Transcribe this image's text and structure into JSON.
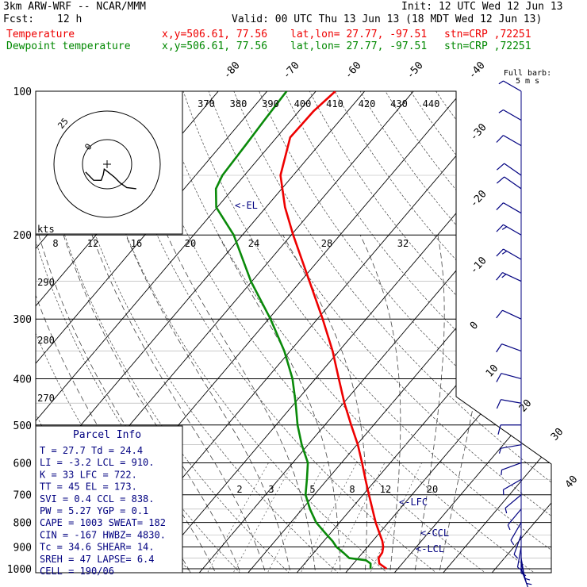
{
  "header": {
    "model": "3km ARW-WRF -- NCAR/MMM",
    "init": "Init: 12 UTC Wed 12 Jun 13",
    "fcst_label": "Fcst:",
    "fcst_value": "12 h",
    "valid": "Valid: 00 UTC Thu 13 Jun 13 (18 MDT Wed 12 Jun 13)",
    "lines": [
      {
        "name": "Temperature",
        "xy": "x,y=506.61, 77.56",
        "latlon": "lat,lon= 27.77, -97.51",
        "stn": "stn=CRP ,72251",
        "color": "#ee0000"
      },
      {
        "name": "Dewpoint temperature",
        "xy": "x,y=506.61, 77.56",
        "latlon": "lat,lon= 27.77, -97.51",
        "stn": "stn=CRP ,72251",
        "color": "#008800"
      }
    ]
  },
  "colors": {
    "temperature": "#ee0000",
    "dewpoint": "#0a8a0a",
    "grid": "#000000",
    "text_blue": "#000080",
    "wind_barb": "#000080"
  },
  "pressure_labels": [
    "100",
    "200",
    "300",
    "400",
    "500",
    "600",
    "700",
    "800",
    "900",
    "1000"
  ],
  "isotherm_labels": [
    {
      "t": -80,
      "label": "-80"
    },
    {
      "t": -70,
      "label": "-70"
    },
    {
      "t": -60,
      "label": "-60"
    },
    {
      "t": -50,
      "label": "-50"
    },
    {
      "t": -40,
      "label": "-40"
    },
    {
      "t": -30,
      "label": "-30"
    },
    {
      "t": -20,
      "label": "-20"
    },
    {
      "t": -10,
      "label": "-10"
    },
    {
      "t": 0,
      "label": "0"
    },
    {
      "t": 10,
      "label": "10"
    },
    {
      "t": 20,
      "label": "20"
    },
    {
      "t": 30,
      "label": "30"
    },
    {
      "t": 40,
      "label": "40"
    }
  ],
  "theta_labels_top": [
    "370",
    "380",
    "390",
    "400",
    "410",
    "420",
    "430",
    "440"
  ],
  "theta_labels_left": [
    "290",
    "280",
    "270"
  ],
  "hodograph": {
    "kts_label": "kts",
    "speed_labels": [
      "8",
      "12",
      "16",
      "20",
      "24",
      "28",
      "32"
    ],
    "ring_labels": [
      "25",
      "0"
    ]
  },
  "mixing_ratio_labels": [
    "2",
    "3",
    "5",
    "8",
    "12",
    "20"
  ],
  "level_labels": {
    "el": "<-EL",
    "lfc": "<-LFC",
    "ccl": "<-CCL",
    "lcl": "<-LCL"
  },
  "barb_title": "Full barb:",
  "barb_unit": "5 m s",
  "parcel_info": {
    "title": "Parcel Info",
    "rows": [
      "T  =   27.7 Td =  24.4",
      "LI =   -3.2 LCL =  910.",
      "K  =     33 LFC =  722.",
      "TT =     45 EL  =  173.",
      "SVI =   0.4 CCL =  838.",
      "PW =   5.27 YGP =   0.1",
      "CAPE =  1003 SWEAT=  182",
      "CIN =  -167 HWBZ= 4830.",
      "Tc =   34.6 SHEAR=  14.",
      "SREH =   47 LAPSE=  6.4",
      "CELL = 190/06"
    ]
  },
  "chart_data": {
    "type": "line",
    "y_axis": "pressure (hPa)",
    "ylim": [
      1000,
      100
    ],
    "x_axis": "temperature (C)",
    "series": [
      {
        "name": "Temperature",
        "points": [
          [
            1000,
            27.7
          ],
          [
            975,
            25.3
          ],
          [
            950,
            24.2
          ],
          [
            925,
            24.0
          ],
          [
            900,
            23.2
          ],
          [
            875,
            22.0
          ],
          [
            850,
            20.5
          ],
          [
            800,
            17.4
          ],
          [
            750,
            14.4
          ],
          [
            700,
            11.2
          ],
          [
            650,
            7.8
          ],
          [
            600,
            4.2
          ],
          [
            550,
            0.2
          ],
          [
            500,
            -4.6
          ],
          [
            450,
            -9.8
          ],
          [
            400,
            -15.2
          ],
          [
            350,
            -21.3
          ],
          [
            300,
            -28.9
          ],
          [
            250,
            -38.2
          ],
          [
            200,
            -49.6
          ],
          [
            175,
            -56.1
          ],
          [
            150,
            -62.6
          ],
          [
            125,
            -67.2
          ],
          [
            110,
            -67.0
          ],
          [
            100,
            -66.0
          ]
        ]
      },
      {
        "name": "Dewpoint temperature",
        "points": [
          [
            1000,
            24.4
          ],
          [
            975,
            23.5
          ],
          [
            960,
            22.0
          ],
          [
            950,
            18.2
          ],
          [
            925,
            16.0
          ],
          [
            900,
            13.6
          ],
          [
            875,
            11.8
          ],
          [
            850,
            9.6
          ],
          [
            800,
            5.2
          ],
          [
            750,
            1.6
          ],
          [
            700,
            -1.8
          ],
          [
            650,
            -4.2
          ],
          [
            600,
            -6.9
          ],
          [
            550,
            -11.3
          ],
          [
            500,
            -15.6
          ],
          [
            450,
            -19.8
          ],
          [
            400,
            -24.7
          ],
          [
            350,
            -31.2
          ],
          [
            300,
            -39.6
          ],
          [
            250,
            -50.2
          ],
          [
            200,
            -61.8
          ],
          [
            175,
            -70.2
          ],
          [
            160,
            -73.5
          ],
          [
            150,
            -74.5
          ],
          [
            130,
            -75.0
          ],
          [
            115,
            -75.5
          ],
          [
            100,
            -76.0
          ]
        ]
      }
    ],
    "winds": [
      [
        1000,
        4,
        160
      ],
      [
        975,
        5,
        165
      ],
      [
        950,
        6,
        170
      ],
      [
        925,
        7,
        180
      ],
      [
        900,
        7,
        190
      ],
      [
        850,
        7,
        200
      ],
      [
        800,
        7,
        210
      ],
      [
        750,
        6,
        220
      ],
      [
        700,
        6,
        230
      ],
      [
        650,
        6,
        240
      ],
      [
        600,
        6,
        250
      ],
      [
        550,
        7,
        260
      ],
      [
        500,
        8,
        270
      ],
      [
        450,
        9,
        280
      ],
      [
        400,
        10,
        285
      ],
      [
        350,
        11,
        290
      ],
      [
        300,
        12,
        295
      ],
      [
        250,
        13,
        295
      ],
      [
        225,
        13,
        300
      ],
      [
        200,
        13,
        300
      ],
      [
        180,
        12,
        300
      ],
      [
        160,
        11,
        305
      ],
      [
        150,
        10,
        305
      ],
      [
        130,
        8,
        300
      ],
      [
        115,
        7,
        300
      ],
      [
        100,
        6,
        300
      ]
    ],
    "hodograph_points": [
      [
        20,
        130
      ],
      [
        16,
        140
      ],
      [
        12,
        145
      ],
      [
        8,
        150
      ],
      [
        4,
        175
      ],
      [
        3,
        210
      ],
      [
        6,
        200
      ],
      [
        9,
        200
      ],
      [
        11,
        220
      ],
      [
        12,
        250
      ]
    ]
  }
}
